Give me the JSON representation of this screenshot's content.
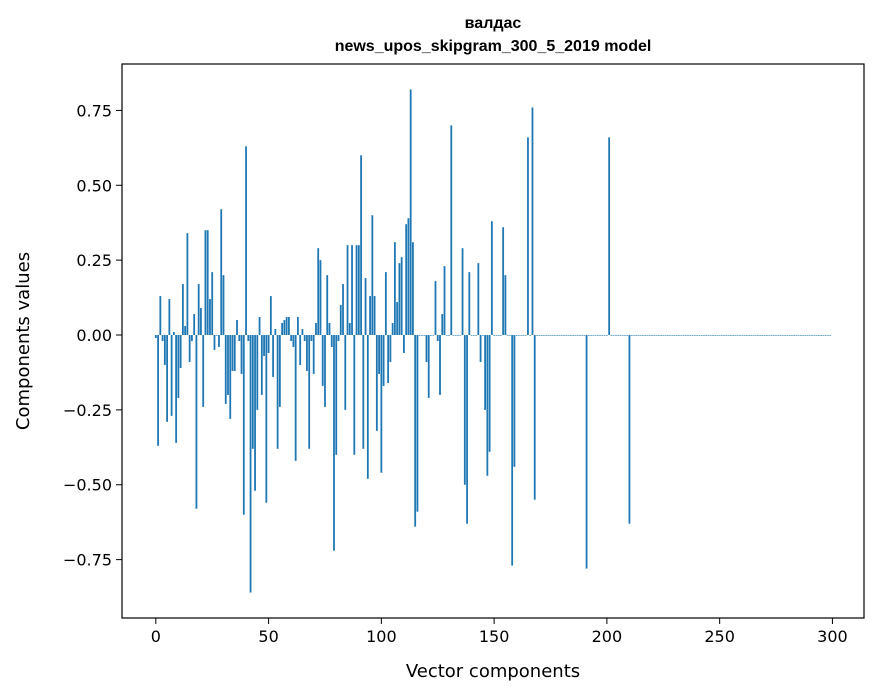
{
  "chart_data": {
    "type": "bar",
    "title_line1": "валдас",
    "title_line2": "news_upos_skipgram_300_5_2019 model",
    "xlabel": "Vector components",
    "ylabel": "Components values",
    "xlim": [
      -15,
      314
    ],
    "ylim": [
      -0.945,
      0.905
    ],
    "xticks": [
      0,
      50,
      100,
      150,
      200,
      250,
      300
    ],
    "xtick_labels": [
      "0",
      "50",
      "100",
      "150",
      "200",
      "250",
      "300"
    ],
    "yticks": [
      -0.75,
      -0.5,
      -0.25,
      0.0,
      0.25,
      0.5,
      0.75
    ],
    "ytick_labels": [
      "−0.75",
      "−0.50",
      "−0.25",
      "0.00",
      "0.25",
      "0.50",
      "0.75"
    ],
    "bar_color": "#1f77b4",
    "grid": false,
    "values": [
      -0.01,
      -0.37,
      0.13,
      -0.02,
      -0.1,
      -0.29,
      0.12,
      -0.27,
      0.01,
      -0.36,
      -0.21,
      -0.11,
      0.17,
      0.03,
      0.34,
      -0.09,
      -0.02,
      0.07,
      -0.58,
      0.17,
      0.09,
      -0.24,
      0.35,
      0.35,
      0.12,
      0.21,
      -0.05,
      0.0,
      -0.04,
      0.42,
      0.2,
      -0.23,
      -0.2,
      -0.28,
      -0.12,
      -0.12,
      0.05,
      -0.02,
      -0.13,
      -0.6,
      0.63,
      -0.02,
      -0.86,
      -0.38,
      -0.52,
      -0.25,
      0.06,
      -0.2,
      -0.07,
      -0.56,
      -0.06,
      0.13,
      -0.14,
      0.02,
      -0.38,
      -0.24,
      0.04,
      0.05,
      0.06,
      0.06,
      -0.02,
      -0.04,
      -0.42,
      0.06,
      -0.1,
      0.02,
      -0.02,
      -0.12,
      -0.38,
      -0.02,
      -0.13,
      0.04,
      0.29,
      0.25,
      -0.17,
      -0.24,
      0.2,
      0.04,
      -0.04,
      -0.72,
      -0.4,
      -0.02,
      0.1,
      0.17,
      -0.25,
      0.3,
      0.04,
      0.3,
      -0.4,
      0.3,
      0.3,
      0.6,
      -0.38,
      0.19,
      -0.48,
      0.13,
      0.4,
      0.13,
      -0.32,
      -0.13,
      -0.46,
      -0.17,
      0.21,
      -0.16,
      -0.09,
      0.04,
      0.31,
      0.11,
      0.24,
      0.26,
      -0.06,
      0.37,
      0.39,
      0.82,
      0.31,
      -0.64,
      -0.59,
      0.0,
      0.0,
      0.0,
      -0.09,
      -0.21,
      0.0,
      0.0,
      0.18,
      -0.02,
      -0.2,
      0.07,
      0.23,
      0.0,
      0.0,
      0.7,
      0.0,
      0.0,
      0.0,
      0.0,
      0.29,
      -0.5,
      -0.63,
      0.21,
      0.0,
      0.0,
      0.0,
      0.24,
      -0.09,
      0.0,
      -0.25,
      -0.47,
      -0.39,
      0.38,
      0.0,
      0.0,
      0.0,
      0.0,
      0.36,
      0.2,
      0.0,
      0.0,
      -0.77,
      -0.44,
      0.0,
      0.0,
      0.0,
      0.0,
      0.0,
      0.66,
      0.0,
      0.76,
      -0.55,
      0.0,
      0.0,
      0.0,
      0.0,
      0.0,
      0.0,
      0.0,
      0.0,
      0.0,
      0.0,
      0.0,
      0.0,
      0.0,
      0.0,
      0.0,
      0.0,
      0.0,
      0.0,
      0.0,
      0.0,
      0.0,
      0.0,
      -0.78,
      0.0,
      0.0,
      0.0,
      0.0,
      0.0,
      0.0,
      0.0,
      0.0,
      0.0,
      0.66,
      0.0,
      0.0,
      0.0,
      0.0,
      0.0,
      0.0,
      0.0,
      0.0,
      -0.63,
      0.0,
      0.0,
      0.0,
      0.0,
      0.0,
      0.0,
      0.0,
      0.0,
      0.0,
      0.0,
      0.0,
      0.0,
      0.0,
      0.0,
      0.0,
      0.0,
      0.0,
      0.0,
      0.0,
      0.0,
      0.0,
      0.0,
      0.0,
      0.0,
      0.0,
      0.0,
      0.0,
      0.0,
      0.0,
      0.0,
      0.0,
      0.0,
      0.0,
      0.0,
      0.0,
      0.0,
      0.0,
      0.0,
      0.0,
      0.0,
      0.0,
      0.0,
      0.0,
      0.0,
      0.0,
      0.0,
      0.0,
      0.0,
      0.0,
      0.0,
      0.0,
      0.0,
      0.0,
      0.0,
      0.0,
      0.0,
      0.0,
      0.0,
      0.0,
      0.0,
      0.0,
      0.0,
      0.0,
      0.0,
      0.0,
      0.0,
      0.0,
      0.0,
      0.0,
      0.0,
      0.0,
      0.0,
      0.0,
      0.0,
      0.0,
      0.0,
      0.0,
      0.0,
      0.0,
      0.0,
      0.0,
      0.0,
      0.0,
      0.0,
      0.0,
      0.0,
      0.0,
      0.0,
      0.0
    ]
  }
}
